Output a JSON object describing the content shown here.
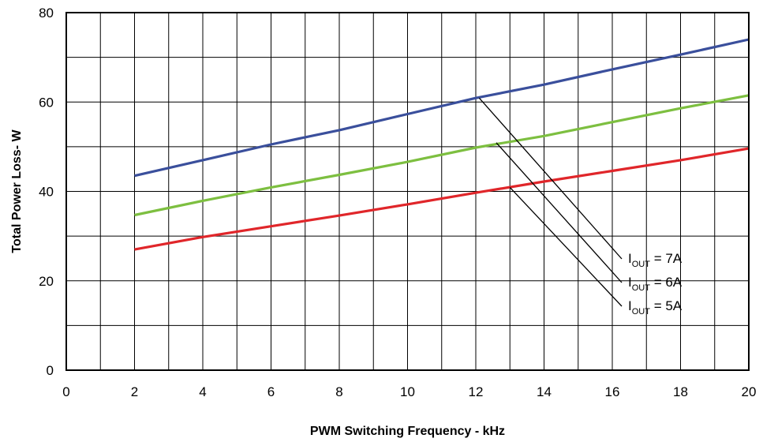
{
  "chart_data": {
    "type": "line",
    "title": "",
    "xlabel": "PWM Switching Frequency - kHz",
    "ylabel": "Total Power Loss- W",
    "xlim": [
      0,
      20
    ],
    "ylim": [
      0,
      80
    ],
    "x_ticks": [
      0,
      2,
      4,
      6,
      8,
      10,
      12,
      14,
      16,
      18,
      20
    ],
    "y_ticks": [
      0,
      20,
      40,
      60,
      80
    ],
    "x_minor_step": 1,
    "y_minor_step": 10,
    "grid": true,
    "legend": "none",
    "series": [
      {
        "name": "IOUT = 7A",
        "color": "#3a4f9c",
        "x": [
          2,
          4,
          6,
          8,
          10,
          12,
          14,
          16,
          18,
          20
        ],
        "y": [
          43.5,
          47,
          50.5,
          53.7,
          57.3,
          60.9,
          63.9,
          67.3,
          70.6,
          74
        ]
      },
      {
        "name": "IOUT = 6A",
        "color": "#7dbf40",
        "x": [
          2,
          4,
          6,
          8,
          10,
          12,
          14,
          16,
          18,
          20
        ],
        "y": [
          34.7,
          37.9,
          40.9,
          43.7,
          46.6,
          49.8,
          52.4,
          55.5,
          58.6,
          61.5
        ]
      },
      {
        "name": "IOUT = 5A",
        "color": "#e0262a",
        "x": [
          2,
          4,
          6,
          8,
          10,
          12,
          14,
          16,
          18,
          20
        ],
        "y": [
          27,
          29.8,
          32.2,
          34.6,
          37.1,
          39.7,
          42.2,
          44.6,
          47,
          49.6
        ]
      }
    ],
    "annotations": [
      {
        "main": "I",
        "sub": "OUT",
        "value": " = 7A",
        "x": 12.1,
        "y": 60.9
      },
      {
        "main": "I",
        "sub": "OUT",
        "value": " = 6A",
        "x": 12.6,
        "y": 50.9
      },
      {
        "main": "I",
        "sub": "OUT",
        "value": " = 5A",
        "x": 13.0,
        "y": 40.9
      }
    ]
  }
}
